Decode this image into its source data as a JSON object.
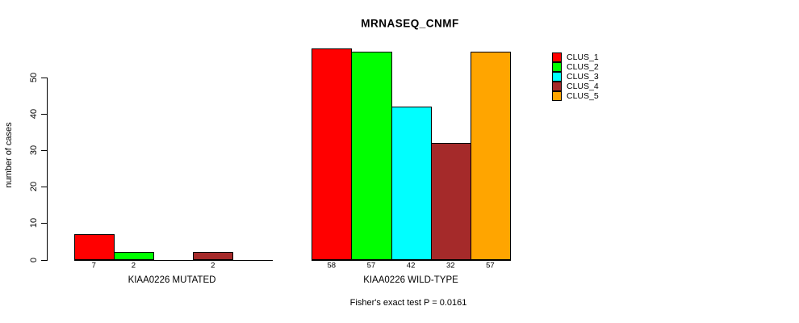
{
  "title": "MRNASEQ_CNMF",
  "ylabel": "number of cases",
  "footer": "Fisher's exact test P = 0.0161",
  "yticks": [
    "0",
    "10",
    "20",
    "30",
    "40",
    "50"
  ],
  "groups": [
    {
      "label": "KIAA0226 MUTATED",
      "value_labels": [
        "7",
        "2",
        "",
        "2",
        ""
      ]
    },
    {
      "label": "KIAA0226 WILD-TYPE",
      "value_labels": [
        "58",
        "57",
        "42",
        "32",
        "57"
      ]
    }
  ],
  "legend": [
    {
      "label": "CLUS_1",
      "color": "#FF0000"
    },
    {
      "label": "CLUS_2",
      "color": "#00FF00"
    },
    {
      "label": "CLUS_3",
      "color": "#00FFFF"
    },
    {
      "label": "CLUS_4",
      "color": "#A52A2A"
    },
    {
      "label": "CLUS_5",
      "color": "#FFA500"
    }
  ],
  "chart_data": {
    "type": "bar",
    "categories": [
      "KIAA0226 MUTATED",
      "KIAA0226 WILD-TYPE"
    ],
    "series": [
      {
        "name": "CLUS_1",
        "values": [
          7,
          58
        ],
        "color": "#FF0000"
      },
      {
        "name": "CLUS_2",
        "values": [
          2,
          57
        ],
        "color": "#00FF00"
      },
      {
        "name": "CLUS_3",
        "values": [
          0,
          42
        ],
        "color": "#00FFFF"
      },
      {
        "name": "CLUS_4",
        "values": [
          2,
          32
        ],
        "color": "#A52A2A"
      },
      {
        "name": "CLUS_5",
        "values": [
          0,
          57
        ],
        "color": "#FFA500"
      }
    ],
    "title": "MRNASEQ_CNMF",
    "xlabel": "",
    "ylabel": "number of cases",
    "ylim": [
      0,
      58
    ],
    "yticks": [
      0,
      10,
      20,
      30,
      40,
      50
    ],
    "annotation": "Fisher's exact test P = 0.0161",
    "legend_position": "right",
    "grid": false
  }
}
